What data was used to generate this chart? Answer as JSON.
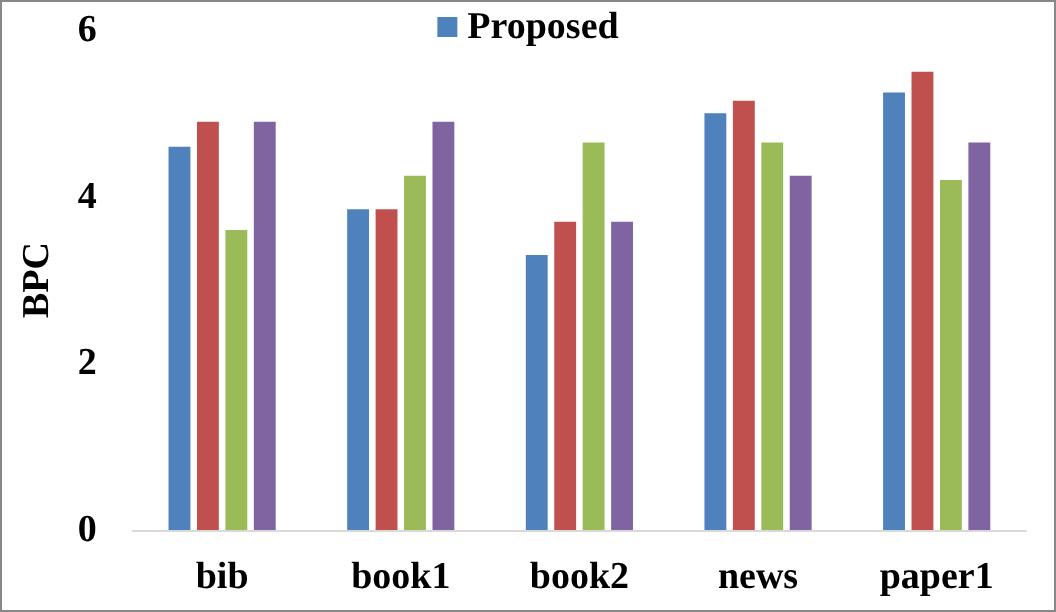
{
  "chart_data": {
    "type": "bar",
    "ylabel": "BPC",
    "categories": [
      "bib",
      "book1",
      "book2",
      "news",
      "paper1"
    ],
    "series": [
      {
        "name": "Proposed",
        "color": "#4f81bd",
        "values": [
          4.6,
          3.85,
          3.3,
          5.0,
          5.25
        ]
      },
      {
        "color": "#c0504d",
        "values": [
          4.9,
          3.85,
          3.7,
          5.15,
          5.5
        ]
      },
      {
        "color": "#9bbb59",
        "values": [
          3.6,
          4.25,
          4.65,
          4.65,
          4.2
        ]
      },
      {
        "color": "#8064a2",
        "values": [
          4.9,
          4.9,
          3.7,
          4.25,
          4.65
        ]
      }
    ],
    "ylim": [
      0,
      6
    ],
    "yticks": [
      0,
      2,
      4,
      6
    ],
    "grid": false,
    "legend": "top"
  }
}
